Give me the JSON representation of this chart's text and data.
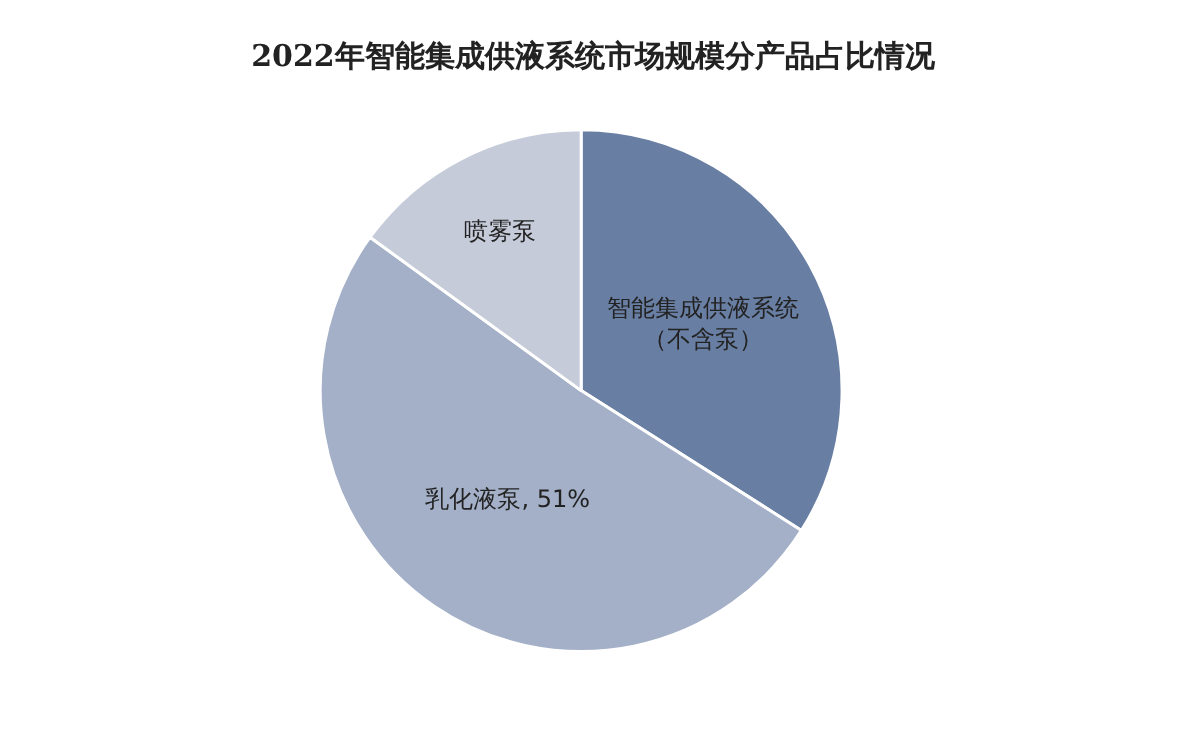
{
  "chart_data": {
    "type": "pie",
    "title": "2022年智能集成供液系统市场规模分产品占比情况",
    "categories": [
      "智能集成供液系统（不含泵）",
      "乳化液泵",
      "喷雾泵"
    ],
    "values": [
      34,
      51,
      15
    ],
    "value_labels": [
      null,
      "51%",
      null
    ],
    "colors": [
      "#687ea3",
      "#a4b0c8",
      "#c5cbd9"
    ],
    "legend": false
  }
}
